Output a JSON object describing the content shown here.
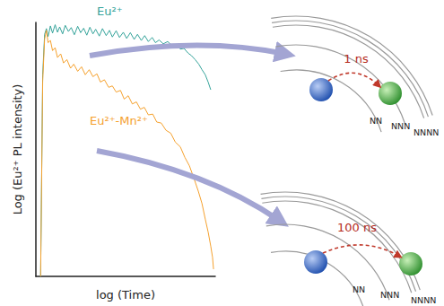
{
  "chart_data": {
    "type": "line",
    "log": true,
    "tick_labels": false,
    "grid": false,
    "xlabel": "log (Time)",
    "ylabel": "Log (Eu²⁺ PL intensity)",
    "xlim": [
      1,
      1000
    ],
    "ylim": [
      1,
      10000
    ],
    "series": [
      {
        "name": "Eu²⁺",
        "color": "#35a39a",
        "x": [
          1.2,
          1.3,
          1.4,
          1.5,
          1.6,
          1.75,
          1.9,
          2.1,
          2.3,
          2.5,
          2.8,
          3.1,
          3.5,
          3.9,
          4.4,
          5,
          5.6,
          6.3,
          7.1,
          8,
          9,
          10,
          11.5,
          13,
          15,
          17,
          19,
          22,
          25,
          29,
          33,
          38,
          44,
          50,
          58,
          66,
          76,
          88,
          100,
          115,
          135,
          160,
          190,
          220,
          260,
          300,
          350,
          400,
          460,
          530,
          600,
          680,
          760,
          840
        ],
        "values": [
          1,
          1500,
          6500,
          8000,
          6000,
          8800,
          6800,
          9200,
          7000,
          8500,
          6600,
          9000,
          7200,
          8300,
          6400,
          8700,
          6900,
          8100,
          6300,
          8400,
          6600,
          7800,
          6100,
          8000,
          6200,
          7500,
          5900,
          7400,
          5800,
          7000,
          5600,
          6900,
          5400,
          6500,
          5200,
          6200,
          5000,
          5800,
          4800,
          5300,
          4600,
          5000,
          4300,
          4500,
          3800,
          3900,
          3300,
          3000,
          2600,
          2200,
          1800,
          1500,
          1150,
          870
        ]
      },
      {
        "name": "Eu²⁺-Mn²⁺",
        "color": "#f5a12e",
        "x": [
          1.2,
          1.3,
          1.4,
          1.5,
          1.6,
          1.75,
          1.9,
          2.1,
          2.3,
          2.6,
          2.9,
          3.3,
          3.8,
          4.3,
          5,
          5.8,
          6.7,
          7.8,
          9,
          10.5,
          12,
          14,
          16.5,
          19,
          22,
          26,
          30,
          35,
          41,
          48,
          56,
          65,
          76,
          90,
          105,
          125,
          150,
          180,
          215,
          260,
          310,
          370,
          440,
          520,
          600,
          680,
          760,
          840,
          900,
          935
        ],
        "values": [
          1,
          1200,
          5500,
          7500,
          4800,
          5200,
          3600,
          4000,
          2800,
          3200,
          2300,
          2600,
          1900,
          2200,
          1700,
          2000,
          1500,
          1800,
          1400,
          1550,
          1150,
          1250,
          950,
          1000,
          800,
          850,
          620,
          700,
          520,
          560,
          430,
          460,
          350,
          360,
          270,
          260,
          200,
          180,
          130,
          110,
          75,
          55,
          35,
          22,
          14,
          8,
          5,
          3,
          2,
          1.3
        ]
      }
    ]
  },
  "diagram": {
    "panels": [
      {
        "time": "1 ns",
        "shells": [
          "NN",
          "NNN",
          "NNNN"
        ]
      },
      {
        "time": "100 ns",
        "shells": [
          "NN",
          "NNN",
          "NNNN"
        ]
      }
    ]
  }
}
